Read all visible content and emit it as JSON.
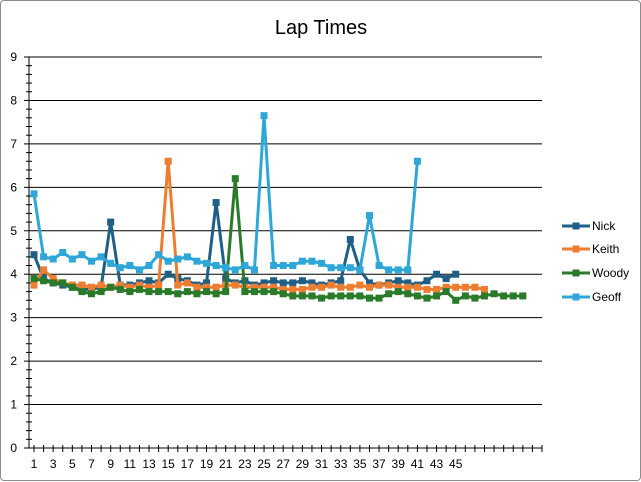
{
  "chart_data": {
    "type": "line",
    "title": "Lap Times",
    "xlabel": "",
    "ylabel": "",
    "ylim": [
      0,
      9
    ],
    "xlim": [
      1,
      54
    ],
    "yticks": [
      0,
      1,
      2,
      3,
      4,
      5,
      6,
      7,
      8,
      9
    ],
    "xticks": [
      1,
      3,
      5,
      7,
      9,
      11,
      13,
      15,
      17,
      19,
      21,
      23,
      25,
      27,
      29,
      31,
      33,
      35,
      37,
      39,
      41,
      43,
      45
    ],
    "grid": "horizontal",
    "legend": "right",
    "series": [
      {
        "name": "Nick",
        "color": "#1f5f86",
        "values": [
          4.45,
          3.9,
          3.8,
          3.75,
          3.7,
          3.65,
          3.65,
          3.7,
          5.2,
          3.75,
          3.75,
          3.8,
          3.85,
          3.8,
          4.0,
          3.9,
          3.85,
          3.75,
          3.8,
          5.65,
          3.9,
          3.8,
          3.85,
          3.75,
          3.8,
          3.85,
          3.8,
          3.8,
          3.85,
          3.8,
          3.75,
          3.8,
          3.85,
          4.8,
          4.1,
          3.8,
          3.75,
          3.8,
          3.85,
          3.8,
          3.75,
          3.85,
          4.0,
          3.9,
          4.0
        ]
      },
      {
        "name": "Keith",
        "color": "#ed7d31",
        "values": [
          3.75,
          4.1,
          3.9,
          3.8,
          3.75,
          3.75,
          3.7,
          3.75,
          3.7,
          3.75,
          3.7,
          3.75,
          3.7,
          3.75,
          6.6,
          3.75,
          3.8,
          3.7,
          3.7,
          3.7,
          3.75,
          3.75,
          3.7,
          3.7,
          3.7,
          3.7,
          3.65,
          3.65,
          3.65,
          3.7,
          3.7,
          3.75,
          3.7,
          3.7,
          3.75,
          3.7,
          3.75,
          3.75,
          3.7,
          3.7,
          3.7,
          3.65,
          3.65,
          3.7,
          3.7,
          3.7,
          3.7,
          3.65
        ]
      },
      {
        "name": "Woody",
        "color": "#2a7a2a",
        "values": [
          3.9,
          3.85,
          3.8,
          3.8,
          3.7,
          3.6,
          3.55,
          3.6,
          3.7,
          3.65,
          3.6,
          3.65,
          3.6,
          3.6,
          3.6,
          3.55,
          3.6,
          3.55,
          3.6,
          3.55,
          3.6,
          6.2,
          3.6,
          3.6,
          3.6,
          3.6,
          3.55,
          3.5,
          3.5,
          3.5,
          3.45,
          3.5,
          3.5,
          3.5,
          3.5,
          3.45,
          3.45,
          3.55,
          3.6,
          3.55,
          3.5,
          3.45,
          3.5,
          3.6,
          3.4,
          3.5,
          3.45,
          3.5,
          3.55,
          3.5,
          3.5,
          3.5
        ]
      },
      {
        "name": "Geoff",
        "color": "#2ea7d8",
        "values": [
          5.85,
          4.4,
          4.35,
          4.5,
          4.35,
          4.45,
          4.3,
          4.4,
          4.25,
          4.15,
          4.2,
          4.1,
          4.2,
          4.45,
          4.3,
          4.35,
          4.4,
          4.3,
          4.25,
          4.2,
          4.15,
          4.1,
          4.2,
          4.1,
          7.65,
          4.2,
          4.2,
          4.2,
          4.3,
          4.3,
          4.25,
          4.15,
          4.15,
          4.15,
          4.1,
          5.35,
          4.2,
          4.1,
          4.1,
          4.1,
          6.6
        ]
      }
    ]
  }
}
